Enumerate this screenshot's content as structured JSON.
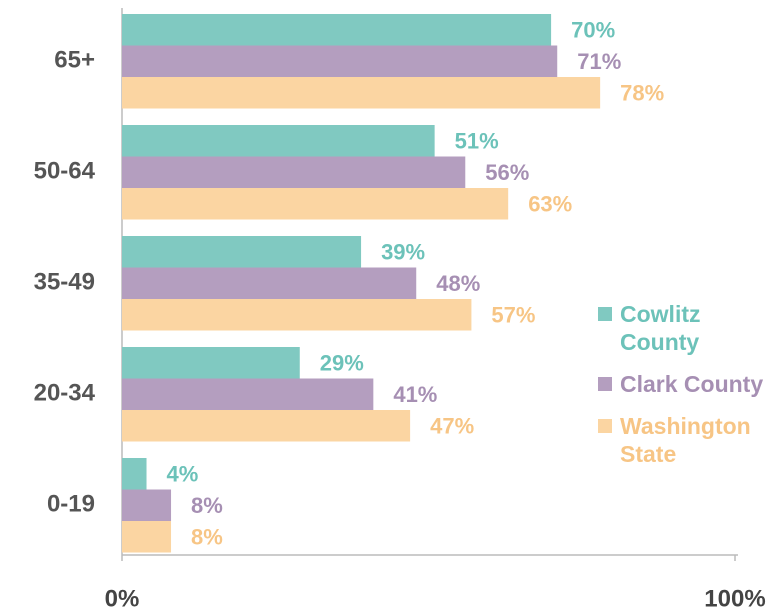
{
  "chart_data": {
    "type": "bar",
    "orientation": "horizontal",
    "categories": [
      "65+",
      "50-64",
      "35-49",
      "20-34",
      "0-19"
    ],
    "series": [
      {
        "name": "Cowlitz County",
        "color": "#80c9c1",
        "values": [
          70,
          51,
          39,
          29,
          4
        ],
        "value_labels": [
          "70%",
          "51%",
          "39%",
          "29%",
          "4%"
        ]
      },
      {
        "name": "Clark County",
        "color": "#b49ebf",
        "values": [
          71,
          56,
          48,
          41,
          8
        ],
        "value_labels": [
          "71%",
          "56%",
          "48%",
          "41%",
          "8%"
        ]
      },
      {
        "name": "Washington State",
        "color": "#fbd5a2",
        "values": [
          78,
          63,
          57,
          47,
          8
        ],
        "value_labels": [
          "78%",
          "63%",
          "57%",
          "47%",
          "8%"
        ]
      }
    ],
    "xlim": [
      0,
      100
    ],
    "xticks": [
      {
        "value": 0,
        "label": "0%"
      },
      {
        "value": 100,
        "label": "100%"
      }
    ],
    "legend": "right",
    "grid": false
  }
}
